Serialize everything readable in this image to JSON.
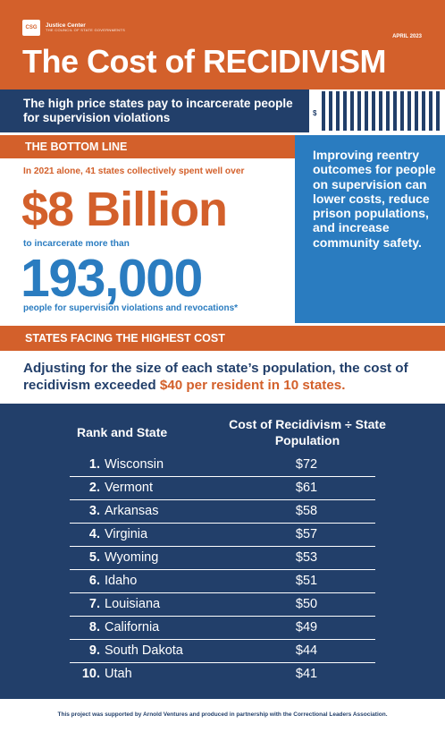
{
  "header": {
    "logo_mark": "CSG",
    "logo_name": "Justice Center",
    "logo_sub": "THE COUNCIL OF STATE GOVERNMENTS",
    "date": "APRIL 2023",
    "title": "The Cost of RECIDIVISM"
  },
  "subtitle": "The high price states pay to incarcerate people for supervision violations",
  "dollar_sign": "$",
  "bottom_line": {
    "label": "THE BOTTOM LINE",
    "intro": "In 2021 alone, 41 states collectively spent well over",
    "big_amount": "$8 Billion",
    "mid": "to incarcerate more than",
    "big_count": "193,000",
    "foot": "people for supervision violations and revocations*"
  },
  "callout": "Improving reentry outcomes for people on supervision can lower costs, reduce prison populations, and increase community safety.",
  "states_section": {
    "label": "STATES FACING THE HIGHEST COST",
    "lead_before": "Adjusting for the size of each state’s population, the cost of recidivism exceeded ",
    "lead_highlight": "$40 per resident in 10 states."
  },
  "table": {
    "col_left": "Rank and State",
    "col_right": "Cost of Recidivism ÷ State Population",
    "rows": [
      {
        "rank": "1.",
        "state": "Wisconsin",
        "value": "$72"
      },
      {
        "rank": "2.",
        "state": "Vermont",
        "value": "$61"
      },
      {
        "rank": "3.",
        "state": "Arkansas",
        "value": "$58"
      },
      {
        "rank": "4.",
        "state": "Virginia",
        "value": "$57"
      },
      {
        "rank": "5.",
        "state": "Wyoming",
        "value": "$53"
      },
      {
        "rank": "6.",
        "state": "Idaho",
        "value": "$51"
      },
      {
        "rank": "7.",
        "state": "Louisiana",
        "value": "$50"
      },
      {
        "rank": "8.",
        "state": "California",
        "value": "$49"
      },
      {
        "rank": "9.",
        "state": "South Dakota",
        "value": "$44"
      },
      {
        "rank": "10.",
        "state": "Utah",
        "value": "$41"
      }
    ]
  },
  "footer": "This project was supported by Arnold Ventures and produced in partnership with the Correctional Leaders Association.",
  "colors": {
    "orange": "#d3602b",
    "navy": "#223f6a",
    "blue": "#2a7cc0"
  }
}
